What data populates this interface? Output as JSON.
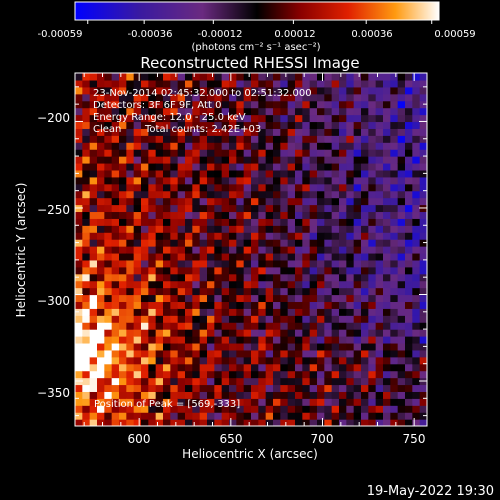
{
  "colorbar": {
    "tick_labels": [
      "-0.00059",
      "-0.00036",
      "-0.00012",
      "0.00012",
      "0.00036",
      "0.00059"
    ],
    "units_label": "(photons cm⁻² s⁻¹ asec⁻²)",
    "range": [
      -0.00059,
      0.00059
    ]
  },
  "chart_data": {
    "type": "heatmap",
    "title": "Reconstructed RHESSI Image",
    "xlabel": "Heliocentric X (arcsec)",
    "ylabel": "Heliocentric Y (arcsec)",
    "xlim": [
      565,
      757
    ],
    "ylim": [
      -376,
      -172
    ],
    "x_ticks": [
      600,
      650,
      700,
      750
    ],
    "y_ticks": [
      -200,
      -250,
      -300,
      -350
    ],
    "annotations": [
      "23-Nov-2014 02:45:32.000 to 02:51:32.000",
      "Detectors: 3F 6F 9F, Att 0",
      "Energy Range: 12.0 - 25.0 keV",
      "Clean",
      "Total counts: 2.42E+03"
    ],
    "peak_label": "Position of Peak = [569,-333]",
    "peak": [
      569,
      -333
    ]
  },
  "footer": {
    "timestamp": "19-May-2022 19:30"
  }
}
